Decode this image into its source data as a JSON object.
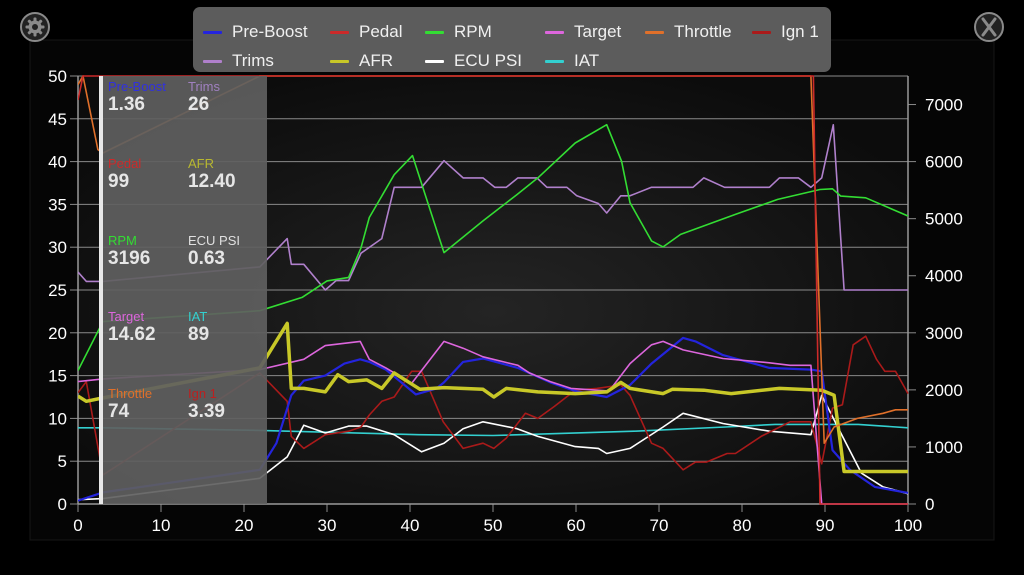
{
  "header": {
    "settings_icon": "gear-icon",
    "close_icon": "close-x-icon"
  },
  "legend": [
    {
      "name": "Pre-Boost",
      "color": "#2424dd"
    },
    {
      "name": "Pedal",
      "color": "#cc2a2a"
    },
    {
      "name": "RPM",
      "color": "#33dd33"
    },
    {
      "name": "Target",
      "color": "#dd66dd"
    },
    {
      "name": "Throttle",
      "color": "#e0702a"
    },
    {
      "name": "Ign 1",
      "color": "#aa1a1a"
    },
    {
      "name": "Trims",
      "color": "#b080cc"
    },
    {
      "name": "AFR",
      "color": "#c8c828"
    },
    {
      "name": "ECU PSI",
      "color": "#ffffff"
    },
    {
      "name": "IAT",
      "color": "#33d0d0"
    }
  ],
  "readout": {
    "cursor_x": 3,
    "items": [
      {
        "label": "Pre-Boost",
        "value": "1.36",
        "color": "#3030e0"
      },
      {
        "label": "Trims",
        "value": "26",
        "color": "#a080c0"
      },
      {
        "label": "Pedal",
        "value": "99",
        "color": "#cc2a2a"
      },
      {
        "label": "AFR",
        "value": "12.40",
        "color": "#b8b830"
      },
      {
        "label": "RPM",
        "value": "3196",
        "color": "#33dd33"
      },
      {
        "label": "ECU PSI",
        "value": "0.63",
        "color": "#e0e0e0"
      },
      {
        "label": "Target",
        "value": "14.62",
        "color": "#dd66dd"
      },
      {
        "label": "IAT",
        "value": "89",
        "color": "#33d0d0"
      },
      {
        "label": "Throttle",
        "value": "74",
        "color": "#e0702a"
      },
      {
        "label": "Ign 1",
        "value": "3.39",
        "color": "#bb2020"
      }
    ]
  },
  "chart_data": {
    "type": "line",
    "xlim": [
      0,
      100
    ],
    "ylim_left": [
      0,
      50
    ],
    "ylim_right": [
      0,
      7500
    ],
    "x_ticks": [
      0,
      10,
      20,
      30,
      40,
      50,
      60,
      70,
      80,
      90,
      100
    ],
    "y_ticks_left": [
      0,
      5,
      10,
      15,
      20,
      25,
      30,
      35,
      40,
      45,
      50
    ],
    "y_ticks_right": [
      0,
      1000,
      2000,
      3000,
      4000,
      5000,
      6000,
      7000
    ],
    "grid": true,
    "legend_position": "top",
    "series": [
      {
        "name": "Trims",
        "axis": "left",
        "color": "#b080cc",
        "width": 1.6,
        "points": [
          [
            0,
            27.1
          ],
          [
            1,
            26
          ],
          [
            3,
            26
          ],
          [
            21.9,
            27.7
          ],
          [
            25.2,
            31
          ],
          [
            25.7,
            28
          ],
          [
            27.2,
            28
          ],
          [
            29.8,
            25
          ],
          [
            31.1,
            26.1
          ],
          [
            32.6,
            26.1
          ],
          [
            34.1,
            29.3
          ],
          [
            36.6,
            31
          ],
          [
            38.1,
            37
          ],
          [
            41.4,
            37
          ],
          [
            44.1,
            40.1
          ],
          [
            46.4,
            38.1
          ],
          [
            48.8,
            38.1
          ],
          [
            50.2,
            37
          ],
          [
            51.6,
            37
          ],
          [
            53,
            38.1
          ],
          [
            55.3,
            38.1
          ],
          [
            56.5,
            37
          ],
          [
            58.9,
            37
          ],
          [
            60.1,
            36
          ],
          [
            62.7,
            35.1
          ],
          [
            63.7,
            34
          ],
          [
            65.4,
            36
          ],
          [
            66.5,
            36
          ],
          [
            69.1,
            37
          ],
          [
            74.1,
            37
          ],
          [
            75.4,
            38.1
          ],
          [
            77.9,
            37
          ],
          [
            83.3,
            37
          ],
          [
            84.5,
            38.1
          ],
          [
            86.8,
            38.1
          ],
          [
            88.3,
            37
          ],
          [
            89.6,
            38.1
          ],
          [
            91,
            44.3
          ],
          [
            92.3,
            25
          ],
          [
            100,
            25
          ]
        ]
      },
      {
        "name": "RPM",
        "axis": "right",
        "color": "#33dd33",
        "width": 1.6,
        "points": [
          [
            0,
            2340
          ],
          [
            3,
            3196
          ],
          [
            21.9,
            3387
          ],
          [
            27,
            3620
          ],
          [
            30,
            3910
          ],
          [
            32.6,
            3970
          ],
          [
            34.1,
            4490
          ],
          [
            35.1,
            5020
          ],
          [
            38.1,
            5770
          ],
          [
            40.3,
            6105
          ],
          [
            44.1,
            4405
          ],
          [
            48.8,
            4960
          ],
          [
            52.9,
            5424
          ],
          [
            55.4,
            5715
          ],
          [
            59.9,
            6326
          ],
          [
            63.7,
            6646
          ],
          [
            65.5,
            6006
          ],
          [
            66.5,
            5280
          ],
          [
            69.1,
            4610
          ],
          [
            70.5,
            4505
          ],
          [
            72.6,
            4725
          ],
          [
            79.2,
            5075
          ],
          [
            84.3,
            5337
          ],
          [
            89.4,
            5511
          ],
          [
            90.9,
            5523
          ],
          [
            91.9,
            5395
          ],
          [
            94.9,
            5366
          ],
          [
            100,
            5046
          ]
        ]
      },
      {
        "name": "IAT",
        "axis": "left",
        "color": "#33d0d0",
        "width": 1.6,
        "points": [
          [
            0,
            8.9
          ],
          [
            3,
            8.9
          ],
          [
            21.9,
            8.6
          ],
          [
            41,
            8.1
          ],
          [
            50,
            8
          ],
          [
            67,
            8.5
          ],
          [
            78,
            9
          ],
          [
            84,
            9.3
          ],
          [
            94,
            9.3
          ],
          [
            100,
            8.9
          ]
        ]
      },
      {
        "name": "ECU PSI",
        "axis": "left",
        "color": "#ffffff",
        "width": 1.6,
        "points": [
          [
            0,
            0.5
          ],
          [
            3,
            0.63
          ],
          [
            21.9,
            3
          ],
          [
            25.2,
            5.5
          ],
          [
            27.2,
            9.2
          ],
          [
            29.8,
            8.3
          ],
          [
            32.6,
            9.1
          ],
          [
            34.8,
            9.1
          ],
          [
            38.1,
            8.1
          ],
          [
            41.4,
            6.1
          ],
          [
            44.1,
            7.1
          ],
          [
            46.4,
            8.8
          ],
          [
            48.8,
            9.6
          ],
          [
            52.9,
            8.8
          ],
          [
            55.4,
            7.9
          ],
          [
            59.9,
            6.7
          ],
          [
            62.7,
            6.5
          ],
          [
            63.7,
            5.9
          ],
          [
            66.5,
            6.5
          ],
          [
            70.5,
            9
          ],
          [
            72.9,
            10.6
          ],
          [
            77.7,
            9.4
          ],
          [
            83.3,
            8.5
          ],
          [
            88.3,
            8.1
          ],
          [
            89.6,
            12.7
          ],
          [
            91.9,
            8.3
          ],
          [
            94.4,
            3.6
          ],
          [
            97,
            2
          ],
          [
            100,
            1.2
          ]
        ]
      },
      {
        "name": "Ign 1",
        "axis": "left",
        "color": "#aa1a1a",
        "width": 1.6,
        "points": [
          [
            0,
            13
          ],
          [
            1,
            14.3
          ],
          [
            3,
            3.39
          ],
          [
            21.9,
            15.3
          ],
          [
            25.2,
            12
          ],
          [
            25.7,
            7.9
          ],
          [
            27.2,
            6.5
          ],
          [
            29.8,
            8.1
          ],
          [
            32.6,
            8.5
          ],
          [
            34.1,
            9
          ],
          [
            35.1,
            10.4
          ],
          [
            36.6,
            12
          ],
          [
            38.1,
            12.5
          ],
          [
            40.2,
            15.5
          ],
          [
            41.4,
            15.5
          ],
          [
            44,
            9.6
          ],
          [
            46.4,
            6.5
          ],
          [
            48.8,
            7.1
          ],
          [
            50.1,
            6.5
          ],
          [
            51.6,
            7.7
          ],
          [
            53.9,
            10.6
          ],
          [
            55.4,
            10
          ],
          [
            57.4,
            11.4
          ],
          [
            59.9,
            13.3
          ],
          [
            62.5,
            13.5
          ],
          [
            65.4,
            13.9
          ],
          [
            66.5,
            12.7
          ],
          [
            69.1,
            7.1
          ],
          [
            70.5,
            6.5
          ],
          [
            72.9,
            4
          ],
          [
            74.4,
            4.9
          ],
          [
            75.7,
            4.9
          ],
          [
            78.2,
            5.9
          ],
          [
            79.2,
            5.9
          ],
          [
            82.3,
            7.9
          ],
          [
            85.8,
            9.6
          ],
          [
            88.3,
            9.6
          ],
          [
            89.6,
            4.7
          ],
          [
            90.9,
            11.2
          ],
          [
            92.1,
            11.6
          ],
          [
            93.4,
            18.6
          ],
          [
            94.9,
            19.6
          ],
          [
            96.2,
            16.9
          ],
          [
            97.2,
            15.5
          ],
          [
            98.5,
            15.5
          ],
          [
            100,
            12.9
          ]
        ]
      },
      {
        "name": "Pre-Boost",
        "axis": "left",
        "color": "#2424dd",
        "width": 2.2,
        "points": [
          [
            0,
            0.4
          ],
          [
            3,
            1.36
          ],
          [
            21.9,
            4
          ],
          [
            23.9,
            7.1
          ],
          [
            25.7,
            12.7
          ],
          [
            27.2,
            14.4
          ],
          [
            29.8,
            15
          ],
          [
            32.1,
            16.4
          ],
          [
            34,
            16.9
          ],
          [
            35.1,
            16.6
          ],
          [
            37.1,
            15.7
          ],
          [
            40.7,
            12.8
          ],
          [
            43.2,
            13.5
          ],
          [
            44.1,
            14.2
          ],
          [
            46.4,
            16.6
          ],
          [
            48.8,
            17
          ],
          [
            53,
            15.9
          ],
          [
            56.9,
            14.2
          ],
          [
            59.9,
            13.2
          ],
          [
            63.7,
            12.5
          ],
          [
            66.5,
            13.9
          ],
          [
            69.1,
            16.4
          ],
          [
            72.9,
            19.4
          ],
          [
            74.4,
            19
          ],
          [
            77.7,
            17.4
          ],
          [
            83.3,
            15.9
          ],
          [
            88.3,
            15.7
          ],
          [
            89.6,
            15.5
          ],
          [
            90.9,
            6.3
          ],
          [
            93,
            4
          ],
          [
            96,
            2
          ],
          [
            100,
            1.3
          ]
        ]
      },
      {
        "name": "Target",
        "axis": "left",
        "color": "#dd66dd",
        "width": 1.6,
        "points": [
          [
            0,
            14.3
          ],
          [
            3,
            14.62
          ],
          [
            21.9,
            15.7
          ],
          [
            27.2,
            16.9
          ],
          [
            29.8,
            18.5
          ],
          [
            34,
            19
          ],
          [
            35.1,
            16.9
          ],
          [
            37.1,
            15.9
          ],
          [
            40.2,
            14.1
          ],
          [
            44.1,
            19
          ],
          [
            46.4,
            18.2
          ],
          [
            48.8,
            17.2
          ],
          [
            51.3,
            16.6
          ],
          [
            53,
            16.2
          ],
          [
            54.4,
            15.3
          ],
          [
            56.9,
            14.3
          ],
          [
            59.4,
            13.5
          ],
          [
            64,
            13.2
          ],
          [
            66.5,
            16.4
          ],
          [
            69.1,
            18.6
          ],
          [
            70.5,
            19
          ],
          [
            72.9,
            18
          ],
          [
            77.7,
            17
          ],
          [
            83.3,
            16.5
          ],
          [
            85.8,
            16.2
          ],
          [
            88.3,
            16.2
          ],
          [
            89.6,
            0
          ],
          [
            100,
            0
          ]
        ]
      },
      {
        "name": "AFR",
        "axis": "left",
        "color": "#c8c828",
        "width": 3.5,
        "points": [
          [
            0,
            12.6
          ],
          [
            1,
            12
          ],
          [
            3,
            12.4
          ],
          [
            21.9,
            15.9
          ],
          [
            25.2,
            21.1
          ],
          [
            25.7,
            13.5
          ],
          [
            27.2,
            13.5
          ],
          [
            29.8,
            13.1
          ],
          [
            31.3,
            15.1
          ],
          [
            32.6,
            14.3
          ],
          [
            34.8,
            14.5
          ],
          [
            36.6,
            13.5
          ],
          [
            38.1,
            15.3
          ],
          [
            41.2,
            13.4
          ],
          [
            44.1,
            13.6
          ],
          [
            48.8,
            13.4
          ],
          [
            50.1,
            12.5
          ],
          [
            51.6,
            13.5
          ],
          [
            55.4,
            13.1
          ],
          [
            59.9,
            12.9
          ],
          [
            63.7,
            13.1
          ],
          [
            65.4,
            14.2
          ],
          [
            66.5,
            13.5
          ],
          [
            70.5,
            12.9
          ],
          [
            71.6,
            13.4
          ],
          [
            75.4,
            13.3
          ],
          [
            78.7,
            12.9
          ],
          [
            84.5,
            13.5
          ],
          [
            89.6,
            13.3
          ],
          [
            91.1,
            12.7
          ],
          [
            92.3,
            3.8
          ],
          [
            100,
            3.8
          ]
        ]
      },
      {
        "name": "Throttle",
        "axis": "left",
        "color": "#e0702a",
        "width": 1.6,
        "points": [
          [
            0,
            49
          ],
          [
            0.6,
            50
          ],
          [
            2.4,
            41.4
          ],
          [
            3,
            41
          ],
          [
            21.9,
            50
          ],
          [
            88.3,
            50
          ],
          [
            89.9,
            7.1
          ],
          [
            91.1,
            9
          ],
          [
            93.9,
            10
          ],
          [
            97,
            10.6
          ],
          [
            98.5,
            11
          ],
          [
            100,
            11
          ]
        ]
      },
      {
        "name": "Pedal",
        "axis": "left",
        "color": "#cc2a2a",
        "width": 1.6,
        "points": [
          [
            0,
            47.2
          ],
          [
            0.6,
            50
          ],
          [
            88.6,
            50
          ],
          [
            89.4,
            0
          ],
          [
            100,
            0
          ]
        ]
      }
    ]
  }
}
